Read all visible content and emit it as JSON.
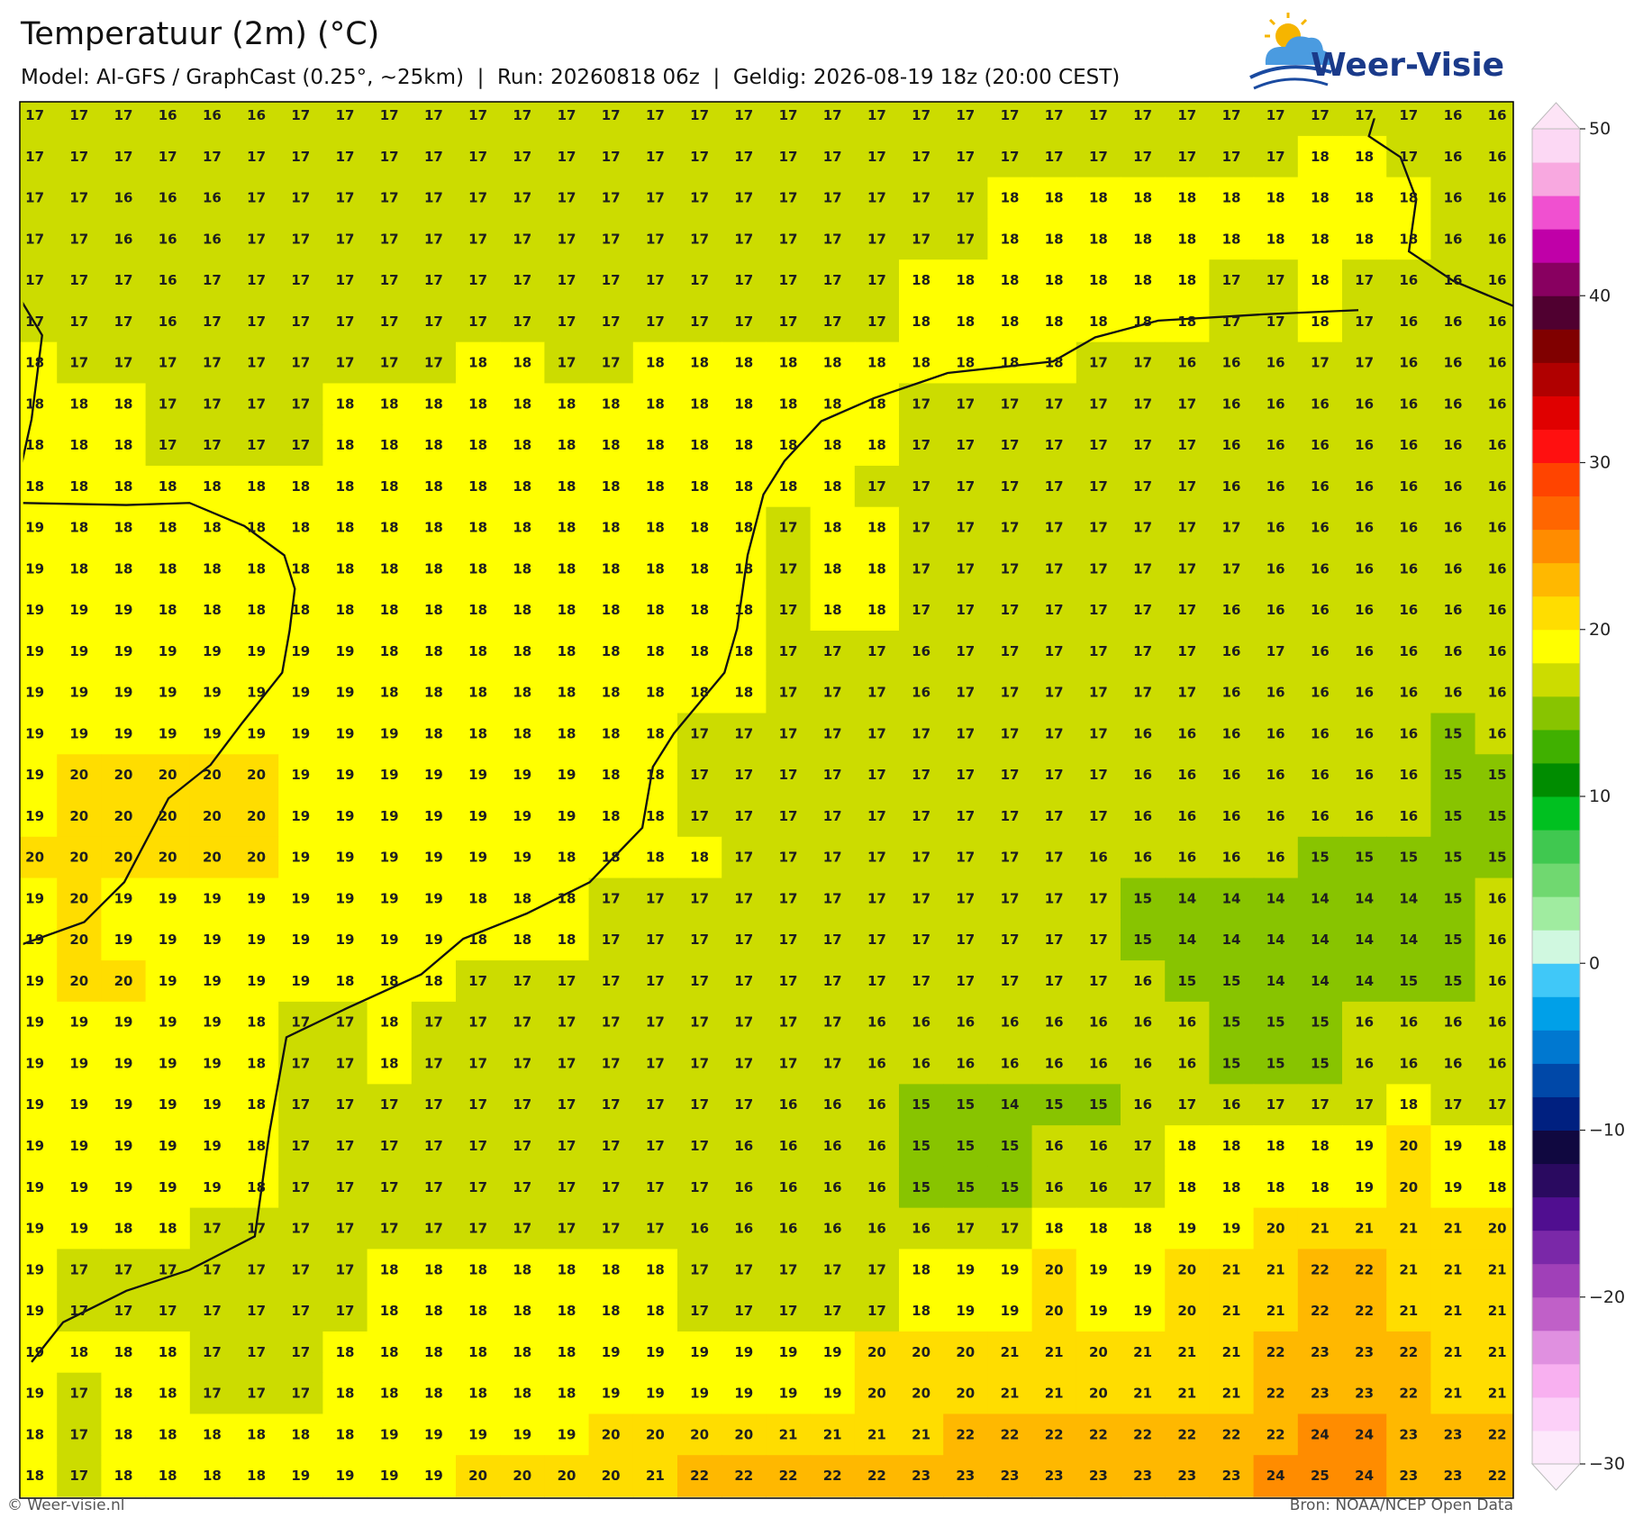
{
  "header": {
    "title": "Temperatuur (2m) (°C)",
    "subtitle": "Model: AI-GFS / GraphCast (0.25°, ~25km)  |  Run: 20260818 06z  |  Geldig: 2026-08-19 18z (20:00 CEST)"
  },
  "logo": "Weer-Visie",
  "map": {
    "values": [
      [
        17,
        17,
        17,
        16,
        16,
        16,
        17,
        17,
        17,
        17,
        17,
        17,
        17,
        17,
        17,
        17,
        17,
        17,
        17,
        17,
        17,
        17,
        17,
        17,
        17,
        17,
        17,
        17,
        17,
        17,
        17,
        17,
        16,
        16
      ],
      [
        17,
        17,
        17,
        17,
        17,
        17,
        17,
        17,
        17,
        17,
        17,
        17,
        17,
        17,
        17,
        17,
        17,
        17,
        17,
        17,
        17,
        17,
        17,
        17,
        17,
        17,
        17,
        17,
        17,
        18,
        18,
        17,
        16,
        16
      ],
      [
        17,
        17,
        16,
        16,
        16,
        17,
        17,
        17,
        17,
        17,
        17,
        17,
        17,
        17,
        17,
        17,
        17,
        17,
        17,
        17,
        17,
        17,
        18,
        18,
        18,
        18,
        18,
        18,
        18,
        18,
        18,
        18,
        16,
        16
      ],
      [
        17,
        17,
        16,
        16,
        16,
        17,
        17,
        17,
        17,
        17,
        17,
        17,
        17,
        17,
        17,
        17,
        17,
        17,
        17,
        17,
        17,
        17,
        18,
        18,
        18,
        18,
        18,
        18,
        18,
        18,
        18,
        18,
        16,
        16
      ],
      [
        17,
        17,
        17,
        16,
        17,
        17,
        17,
        17,
        17,
        17,
        17,
        17,
        17,
        17,
        17,
        17,
        17,
        17,
        17,
        17,
        18,
        18,
        18,
        18,
        18,
        18,
        18,
        17,
        17,
        18,
        17,
        16,
        16,
        16
      ],
      [
        17,
        17,
        17,
        16,
        17,
        17,
        17,
        17,
        17,
        17,
        17,
        17,
        17,
        17,
        17,
        17,
        17,
        17,
        17,
        17,
        18,
        18,
        18,
        18,
        18,
        18,
        18,
        17,
        17,
        18,
        17,
        16,
        16,
        16
      ],
      [
        18,
        17,
        17,
        17,
        17,
        17,
        17,
        17,
        17,
        17,
        18,
        18,
        17,
        17,
        18,
        18,
        18,
        18,
        18,
        18,
        18,
        18,
        18,
        18,
        17,
        17,
        16,
        16,
        16,
        17,
        17,
        16,
        16,
        16
      ],
      [
        18,
        18,
        18,
        17,
        17,
        17,
        17,
        18,
        18,
        18,
        18,
        18,
        18,
        18,
        18,
        18,
        18,
        18,
        18,
        18,
        17,
        17,
        17,
        17,
        17,
        17,
        17,
        16,
        16,
        16,
        16,
        16,
        16,
        16
      ],
      [
        18,
        18,
        18,
        17,
        17,
        17,
        17,
        18,
        18,
        18,
        18,
        18,
        18,
        18,
        18,
        18,
        18,
        18,
        18,
        18,
        17,
        17,
        17,
        17,
        17,
        17,
        17,
        16,
        16,
        16,
        16,
        16,
        16,
        16
      ],
      [
        18,
        18,
        18,
        18,
        18,
        18,
        18,
        18,
        18,
        18,
        18,
        18,
        18,
        18,
        18,
        18,
        18,
        18,
        18,
        17,
        17,
        17,
        17,
        17,
        17,
        17,
        17,
        16,
        16,
        16,
        16,
        16,
        16,
        16
      ],
      [
        19,
        18,
        18,
        18,
        18,
        18,
        18,
        18,
        18,
        18,
        18,
        18,
        18,
        18,
        18,
        18,
        18,
        17,
        18,
        18,
        17,
        17,
        17,
        17,
        17,
        17,
        17,
        17,
        16,
        16,
        16,
        16,
        16,
        16
      ],
      [
        19,
        18,
        18,
        18,
        18,
        18,
        18,
        18,
        18,
        18,
        18,
        18,
        18,
        18,
        18,
        18,
        18,
        17,
        18,
        18,
        17,
        17,
        17,
        17,
        17,
        17,
        17,
        17,
        16,
        16,
        16,
        16,
        16,
        16
      ],
      [
        19,
        19,
        19,
        18,
        18,
        18,
        18,
        18,
        18,
        18,
        18,
        18,
        18,
        18,
        18,
        18,
        18,
        17,
        18,
        18,
        17,
        17,
        17,
        17,
        17,
        17,
        17,
        16,
        16,
        16,
        16,
        16,
        16,
        16
      ],
      [
        19,
        19,
        19,
        19,
        19,
        19,
        19,
        19,
        18,
        18,
        18,
        18,
        18,
        18,
        18,
        18,
        18,
        17,
        17,
        17,
        16,
        17,
        17,
        17,
        17,
        17,
        17,
        16,
        17,
        16,
        16,
        16,
        16,
        16
      ],
      [
        19,
        19,
        19,
        19,
        19,
        19,
        19,
        19,
        18,
        18,
        18,
        18,
        18,
        18,
        18,
        18,
        18,
        17,
        17,
        17,
        16,
        17,
        17,
        17,
        17,
        17,
        17,
        16,
        16,
        16,
        16,
        16,
        16,
        16
      ],
      [
        19,
        19,
        19,
        19,
        19,
        19,
        19,
        19,
        19,
        18,
        18,
        18,
        18,
        18,
        18,
        17,
        17,
        17,
        17,
        17,
        17,
        17,
        17,
        17,
        17,
        16,
        16,
        16,
        16,
        16,
        16,
        16,
        15,
        16
      ],
      [
        19,
        20,
        20,
        20,
        20,
        20,
        19,
        19,
        19,
        19,
        19,
        19,
        19,
        18,
        18,
        17,
        17,
        17,
        17,
        17,
        17,
        17,
        17,
        17,
        17,
        16,
        16,
        16,
        16,
        16,
        16,
        16,
        15,
        15
      ],
      [
        19,
        20,
        20,
        20,
        20,
        20,
        19,
        19,
        19,
        19,
        19,
        19,
        19,
        18,
        18,
        17,
        17,
        17,
        17,
        17,
        17,
        17,
        17,
        17,
        17,
        16,
        16,
        16,
        16,
        16,
        16,
        16,
        15,
        15
      ],
      [
        20,
        20,
        20,
        20,
        20,
        20,
        19,
        19,
        19,
        19,
        19,
        19,
        18,
        18,
        18,
        18,
        17,
        17,
        17,
        17,
        17,
        17,
        17,
        17,
        16,
        16,
        16,
        16,
        16,
        15,
        15,
        15,
        15,
        15
      ],
      [
        19,
        20,
        19,
        19,
        19,
        19,
        19,
        19,
        19,
        19,
        18,
        18,
        18,
        17,
        17,
        17,
        17,
        17,
        17,
        17,
        17,
        17,
        17,
        17,
        17,
        15,
        14,
        14,
        14,
        14,
        14,
        14,
        15,
        16
      ],
      [
        19,
        20,
        19,
        19,
        19,
        19,
        19,
        19,
        19,
        19,
        18,
        18,
        18,
        17,
        17,
        17,
        17,
        17,
        17,
        17,
        17,
        17,
        17,
        17,
        17,
        15,
        14,
        14,
        14,
        14,
        14,
        14,
        15,
        16
      ],
      [
        19,
        20,
        20,
        19,
        19,
        19,
        19,
        18,
        18,
        18,
        17,
        17,
        17,
        17,
        17,
        17,
        17,
        17,
        17,
        17,
        17,
        17,
        17,
        17,
        17,
        16,
        15,
        15,
        14,
        14,
        14,
        15,
        15,
        16
      ],
      [
        19,
        19,
        19,
        19,
        19,
        18,
        17,
        17,
        18,
        17,
        17,
        17,
        17,
        17,
        17,
        17,
        17,
        17,
        17,
        16,
        16,
        16,
        16,
        16,
        16,
        16,
        16,
        15,
        15,
        15,
        16,
        16,
        16,
        16
      ],
      [
        19,
        19,
        19,
        19,
        19,
        18,
        17,
        17,
        18,
        17,
        17,
        17,
        17,
        17,
        17,
        17,
        17,
        17,
        17,
        16,
        16,
        16,
        16,
        16,
        16,
        16,
        16,
        15,
        15,
        15,
        16,
        16,
        16,
        16
      ],
      [
        19,
        19,
        19,
        19,
        19,
        18,
        17,
        17,
        17,
        17,
        17,
        17,
        17,
        17,
        17,
        17,
        17,
        16,
        16,
        16,
        15,
        15,
        14,
        15,
        15,
        16,
        17,
        16,
        17,
        17,
        17,
        18,
        17,
        17
      ],
      [
        19,
        19,
        19,
        19,
        19,
        18,
        17,
        17,
        17,
        17,
        17,
        17,
        17,
        17,
        17,
        17,
        16,
        16,
        16,
        16,
        15,
        15,
        15,
        16,
        16,
        17,
        18,
        18,
        18,
        18,
        19,
        20,
        19,
        18
      ],
      [
        19,
        19,
        19,
        19,
        19,
        18,
        17,
        17,
        17,
        17,
        17,
        17,
        17,
        17,
        17,
        17,
        16,
        16,
        16,
        16,
        15,
        15,
        15,
        16,
        16,
        17,
        18,
        18,
        18,
        18,
        19,
        20,
        19,
        18
      ],
      [
        19,
        19,
        18,
        18,
        17,
        17,
        17,
        17,
        17,
        17,
        17,
        17,
        17,
        17,
        17,
        16,
        16,
        16,
        16,
        16,
        16,
        17,
        17,
        18,
        18,
        18,
        19,
        19,
        20,
        21,
        21,
        21,
        21,
        20
      ],
      [
        19,
        17,
        17,
        17,
        17,
        17,
        17,
        17,
        18,
        18,
        18,
        18,
        18,
        18,
        18,
        17,
        17,
        17,
        17,
        17,
        18,
        19,
        19,
        20,
        19,
        19,
        20,
        21,
        21,
        22,
        22,
        21,
        21,
        21
      ],
      [
        19,
        17,
        17,
        17,
        17,
        17,
        17,
        17,
        18,
        18,
        18,
        18,
        18,
        18,
        18,
        17,
        17,
        17,
        17,
        17,
        18,
        19,
        19,
        20,
        19,
        19,
        20,
        21,
        21,
        22,
        22,
        21,
        21,
        21
      ],
      [
        19,
        18,
        18,
        18,
        17,
        17,
        17,
        18,
        18,
        18,
        18,
        18,
        18,
        19,
        19,
        19,
        19,
        19,
        19,
        20,
        20,
        20,
        21,
        21,
        20,
        21,
        21,
        21,
        22,
        23,
        23,
        22,
        21,
        21
      ],
      [
        19,
        17,
        18,
        18,
        17,
        17,
        17,
        18,
        18,
        18,
        18,
        18,
        18,
        19,
        19,
        19,
        19,
        19,
        19,
        20,
        20,
        20,
        21,
        21,
        20,
        21,
        21,
        21,
        22,
        23,
        23,
        22,
        21,
        21
      ],
      [
        18,
        17,
        18,
        18,
        18,
        18,
        18,
        18,
        19,
        19,
        19,
        19,
        19,
        20,
        20,
        20,
        20,
        21,
        21,
        21,
        21,
        22,
        22,
        22,
        22,
        22,
        22,
        22,
        22,
        24,
        24,
        23,
        23,
        22
      ],
      [
        18,
        17,
        18,
        18,
        18,
        18,
        19,
        19,
        19,
        19,
        20,
        20,
        20,
        20,
        21,
        22,
        22,
        22,
        22,
        22,
        23,
        23,
        23,
        23,
        23,
        23,
        23,
        23,
        24,
        25,
        24,
        23,
        23,
        22
      ]
    ]
  },
  "colorbar": {
    "range": [
      -30,
      50
    ],
    "ticks": [
      50,
      40,
      30,
      20,
      10,
      0,
      {
        "value": -10,
        "label": "−10"
      },
      {
        "value": -20,
        "label": "−20"
      },
      {
        "value": -30,
        "label": "−30"
      }
    ],
    "colors": [
      "#fde8fb",
      "#fcd0f8",
      "#f8b0f0",
      "#e090e0",
      "#c060c8",
      "#a040b8",
      "#7a28a8",
      "#500e90",
      "#2a0a60",
      "#100840",
      "#002080",
      "#0048a8",
      "#0078d0",
      "#00a0e8",
      "#40c8f8",
      "#d0f8e0",
      "#a0eca0",
      "#70d870",
      "#40c850",
      "#00c020",
      "#008c00",
      "#40b000",
      "#88c400",
      "#ccdc00",
      "#ffff00",
      "#ffdd00",
      "#ffb800",
      "#ff8c00",
      "#ff6600",
      "#ff4400",
      "#ff1010",
      "#e00000",
      "#b00000",
      "#800000",
      "#500030",
      "#880060",
      "#c000a8",
      "#f050d0",
      "#f8a8e0",
      "#fcd8f4"
    ],
    "under_color": "#fdf2fc",
    "over_color": "#fde4f6"
  },
  "footer": {
    "left": "© Weer-visie.nl",
    "right": "Bron: NOAA/NCEP Open Data"
  }
}
